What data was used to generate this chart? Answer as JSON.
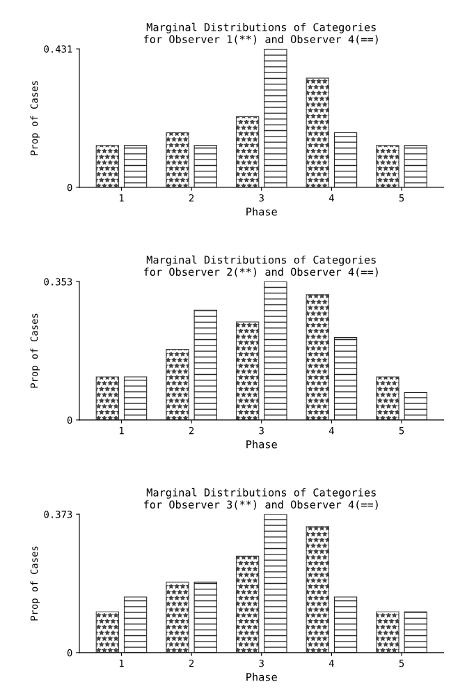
{
  "chart_data": [
    {
      "type": "bar",
      "title": "Marginal Distributions of Categories",
      "subtitle": "for Observer 1(**) and Observer 4(==)",
      "xlabel": "Phase",
      "ylabel": "Prop of Cases",
      "categories": [
        "1",
        "2",
        "3",
        "4",
        "5"
      ],
      "ylim": [
        0,
        0.431
      ],
      "yticks": [
        0,
        0.431
      ],
      "grid": false,
      "legend": false,
      "series": [
        {
          "color": "#444444",
          "values": [
            0.13,
            0.17,
            0.22,
            0.34,
            0.13
          ]
        },
        {
          "color": "#222222",
          "values": [
            0.13,
            0.13,
            0.431,
            0.17,
            0.13
          ]
        }
      ]
    },
    {
      "type": "bar",
      "title": "Marginal Distributions of Categories",
      "subtitle": "for Observer 2(**) and Observer 4(==)",
      "xlabel": "Phase",
      "ylabel": "Prop of Cases",
      "categories": [
        "1",
        "2",
        "3",
        "4",
        "5"
      ],
      "ylim": [
        0,
        0.353
      ],
      "yticks": [
        0,
        0.353
      ],
      "grid": false,
      "legend": false,
      "series": [
        {
          "color": "#444444",
          "values": [
            0.11,
            0.18,
            0.25,
            0.32,
            0.11
          ]
        },
        {
          "color": "#222222",
          "values": [
            0.11,
            0.28,
            0.353,
            0.21,
            0.07
          ]
        }
      ]
    },
    {
      "type": "bar",
      "title": "Marginal Distributions of Categories",
      "subtitle": "for Observer 3(**) and Observer 4(==)",
      "xlabel": "Phase",
      "ylabel": "Prop of Cases",
      "categories": [
        "1",
        "2",
        "3",
        "4",
        "5"
      ],
      "ylim": [
        0,
        0.373
      ],
      "yticks": [
        0,
        0.373
      ],
      "grid": false,
      "legend": false,
      "series": [
        {
          "color": "#444444",
          "values": [
            0.11,
            0.19,
            0.26,
            0.34,
            0.11
          ]
        },
        {
          "color": "#222222",
          "values": [
            0.15,
            0.19,
            0.373,
            0.15,
            0.11
          ]
        }
      ]
    }
  ]
}
